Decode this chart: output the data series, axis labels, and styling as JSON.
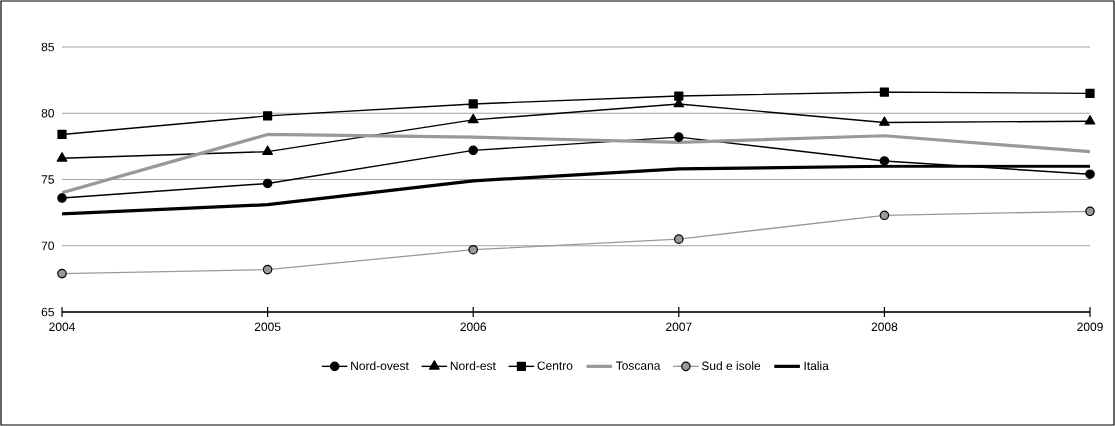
{
  "chart_data": {
    "type": "line",
    "x": [
      2004,
      2005,
      2006,
      2007,
      2008,
      2009
    ],
    "xlim": [
      2004,
      2009
    ],
    "xticks": [
      2004,
      2005,
      2006,
      2007,
      2008,
      2009
    ],
    "ylim": [
      65,
      85
    ],
    "yticks": [
      65,
      70,
      75,
      80,
      85
    ],
    "grid": "y",
    "legend": "bottom",
    "series": [
      {
        "name": "Nord-ovest",
        "color": "#000000",
        "marker": "circle",
        "values": [
          73.6,
          74.7,
          77.2,
          78.2,
          76.4,
          75.4
        ]
      },
      {
        "name": "Nord-est",
        "color": "#000000",
        "marker": "triangle",
        "values": [
          76.6,
          77.1,
          79.5,
          80.7,
          79.3,
          79.4
        ]
      },
      {
        "name": "Centro",
        "color": "#000000",
        "marker": "square",
        "values": [
          78.4,
          79.8,
          80.7,
          81.3,
          81.6,
          81.5
        ]
      },
      {
        "name": "Toscana",
        "color": "#999999",
        "marker": "none",
        "values": [
          74.0,
          78.4,
          78.2,
          77.8,
          78.3,
          77.1
        ]
      },
      {
        "name": "Sud e isole",
        "color": "#999999",
        "marker": "circle",
        "values": [
          67.9,
          68.2,
          69.7,
          70.5,
          72.3,
          72.6
        ]
      },
      {
        "name": "Italia",
        "color": "#000000",
        "marker": "none",
        "values": [
          72.4,
          73.1,
          74.9,
          75.8,
          76.0,
          76.0
        ]
      }
    ]
  }
}
